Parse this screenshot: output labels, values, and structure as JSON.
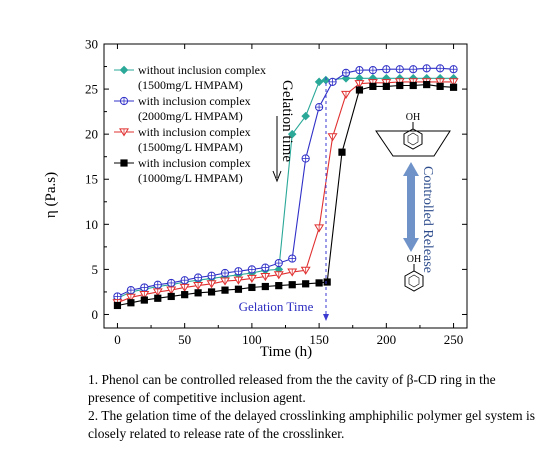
{
  "chart_data": {
    "type": "line",
    "xlabel": "Time (h)",
    "ylabel": "η (Pa.s)",
    "xlim": [
      -10,
      260
    ],
    "ylim": [
      -1.5,
      30
    ],
    "xticks": [
      0,
      50,
      100,
      150,
      200,
      250
    ],
    "yticks": [
      0,
      5,
      10,
      15,
      20,
      25,
      30
    ],
    "grid": false,
    "legend_position": "top-left",
    "series": [
      {
        "name": "without inclusion complex (1500mg/L HMPAM)",
        "color": "#2aa898",
        "marker": "diamond",
        "x": [
          0,
          10,
          20,
          30,
          40,
          50,
          60,
          70,
          80,
          90,
          100,
          110,
          120,
          130,
          140,
          150,
          155,
          170,
          180,
          190,
          200,
          210,
          220,
          230,
          240,
          250
        ],
        "y": [
          1.8,
          2.5,
          2.8,
          3.1,
          3.3,
          3.6,
          3.8,
          4.0,
          4.2,
          4.4,
          4.6,
          4.9,
          5.0,
          20.0,
          22.0,
          25.8,
          26.0,
          26.2,
          26.2,
          26.2,
          26.2,
          26.2,
          26.2,
          26.2,
          26.2,
          26.2
        ]
      },
      {
        "name": "with inclusion complex (2000mg/L HMPAM)",
        "color": "#3030c8",
        "marker": "circle-plus",
        "x": [
          0,
          10,
          20,
          30,
          40,
          50,
          60,
          70,
          80,
          90,
          100,
          110,
          120,
          130,
          140,
          150,
          160,
          170,
          180,
          190,
          200,
          210,
          220,
          230,
          240,
          250
        ],
        "y": [
          2.0,
          2.7,
          3.0,
          3.3,
          3.5,
          3.8,
          4.1,
          4.3,
          4.6,
          4.8,
          5.0,
          5.2,
          5.7,
          6.2,
          17.3,
          23.0,
          25.8,
          26.8,
          27.1,
          27.1,
          27.2,
          27.2,
          27.2,
          27.3,
          27.3,
          27.2
        ]
      },
      {
        "name": "with inclusion complex (1500mg/L HMPAM)",
        "color": "#e03030",
        "marker": "triangle-down",
        "x": [
          0,
          10,
          20,
          30,
          40,
          50,
          60,
          70,
          80,
          90,
          100,
          110,
          120,
          130,
          140,
          150,
          160,
          170,
          180,
          190,
          200,
          210,
          220,
          230,
          240,
          250
        ],
        "y": [
          1.3,
          1.9,
          2.2,
          2.5,
          2.7,
          3.0,
          3.2,
          3.4,
          3.7,
          3.8,
          4.0,
          4.2,
          4.4,
          4.7,
          4.9,
          9.6,
          19.7,
          24.4,
          25.6,
          25.7,
          25.7,
          25.8,
          25.8,
          25.8,
          25.8,
          25.8
        ]
      },
      {
        "name": "with inclusion complex (1000mg/L HMPAM)",
        "color": "#000000",
        "marker": "square",
        "x": [
          0,
          10,
          20,
          30,
          40,
          50,
          60,
          70,
          80,
          90,
          100,
          110,
          120,
          130,
          140,
          150,
          156,
          167,
          180,
          190,
          200,
          210,
          220,
          230,
          240,
          250
        ],
        "y": [
          1.0,
          1.3,
          1.6,
          1.8,
          2.0,
          2.2,
          2.4,
          2.5,
          2.7,
          2.8,
          3.0,
          3.1,
          3.2,
          3.3,
          3.4,
          3.5,
          3.6,
          18.0,
          24.9,
          25.3,
          25.3,
          25.4,
          25.4,
          25.5,
          25.3,
          25.2
        ]
      }
    ],
    "annotations": {
      "gelation_time_vertical": "Gelation time",
      "gelation_time_bottom": "Gelation Time",
      "controlled_release": "Controlled Release",
      "oh_top": "OH",
      "oh_bottom": "OH"
    }
  },
  "captions": {
    "line1": "1. Phenol can be controlled released from the the cavity of β-CD ring in the presence of competitive inclusion agent.",
    "line2": "2. The gelation time of the delayed crosslinking amphiphilic polymer gel system is closely related to release rate of the crosslinker."
  }
}
